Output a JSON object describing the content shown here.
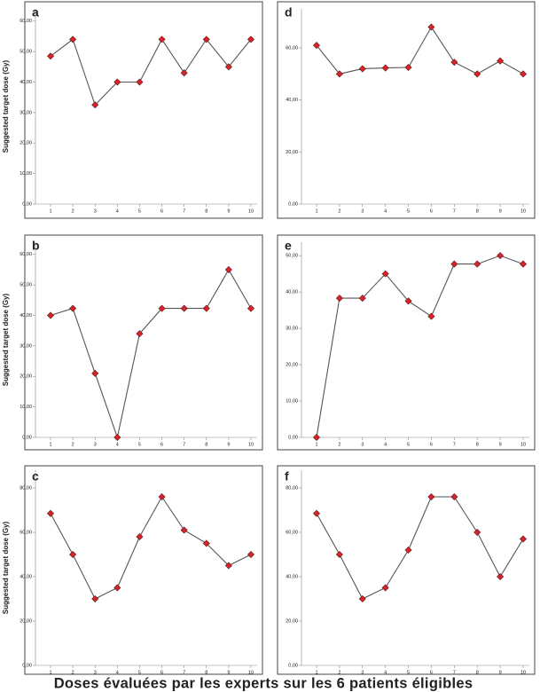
{
  "caption": "Doses évaluées par les experts sur les 6 patients éligibles",
  "chart_data": [
    {
      "type": "line",
      "panel_label": "a",
      "y_label": "Suggested target dose (Gy)",
      "categories": [
        "1",
        "2",
        "3",
        "4",
        "5",
        "6",
        "7",
        "8",
        "9",
        "10"
      ],
      "values": [
        48.5,
        54,
        32.5,
        40,
        40,
        54,
        43,
        54,
        45,
        54
      ],
      "color": "#d8232b",
      "line_color": "#555555",
      "ylim": [
        0,
        64
      ],
      "yticks": [
        {
          "value": 0,
          "label": "0,00"
        },
        {
          "value": 10,
          "label": "10,00"
        },
        {
          "value": 20,
          "label": "20,00"
        },
        {
          "value": 30,
          "label": "30,00"
        },
        {
          "value": 40,
          "label": "40,00"
        },
        {
          "value": 50,
          "label": "50,00"
        },
        {
          "value": 60,
          "label": "60,00"
        }
      ]
    },
    {
      "type": "line",
      "panel_label": "d",
      "categories": [
        "1",
        "2",
        "3",
        "4",
        "5",
        "6",
        "7",
        "8",
        "9",
        "10"
      ],
      "values": [
        61,
        50,
        52,
        52.3,
        52.5,
        68,
        54.5,
        50,
        55,
        50
      ],
      "color": "#d8232b",
      "line_color": "#555555",
      "ylim": [
        0,
        75
      ],
      "yticks": [
        {
          "value": 0,
          "label": "0,00"
        },
        {
          "value": 20,
          "label": "20,00"
        },
        {
          "value": 40,
          "label": "40,00"
        },
        {
          "value": 60,
          "label": "60,00"
        }
      ]
    },
    {
      "type": "line",
      "panel_label": "b",
      "y_label": "Suggested target dose (Gy)",
      "categories": [
        "1",
        "2",
        "3",
        "4",
        "5",
        "6",
        "7",
        "8",
        "9",
        "10"
      ],
      "values": [
        40,
        42.3,
        21,
        0,
        34,
        42.3,
        42.3,
        42.3,
        55,
        42.3
      ],
      "color": "#d8232b",
      "line_color": "#555555",
      "ylim": [
        0,
        64
      ],
      "yticks": [
        {
          "value": 0,
          "label": "0,00"
        },
        {
          "value": 10,
          "label": "10,00"
        },
        {
          "value": 20,
          "label": "20,00"
        },
        {
          "value": 30,
          "label": "30,00"
        },
        {
          "value": 40,
          "label": "40,00"
        },
        {
          "value": 50,
          "label": "50,00"
        },
        {
          "value": 60,
          "label": "60,00"
        }
      ]
    },
    {
      "type": "line",
      "panel_label": "e",
      "categories": [
        "1",
        "2",
        "3",
        "4",
        "5",
        "6",
        "7",
        "8",
        "9",
        "10"
      ],
      "values": [
        0,
        38.3,
        38.3,
        45,
        37.5,
        33.3,
        47.7,
        47.7,
        50,
        47.7
      ],
      "color": "#d8232b",
      "line_color": "#555555",
      "ylim": [
        0,
        53.7
      ],
      "yticks": [
        {
          "value": 0,
          "label": "0,00"
        },
        {
          "value": 10,
          "label": "10,00"
        },
        {
          "value": 20,
          "label": "20,00"
        },
        {
          "value": 30,
          "label": "30,00"
        },
        {
          "value": 40,
          "label": "40,00"
        },
        {
          "value": 50,
          "label": "50,00"
        }
      ]
    },
    {
      "type": "line",
      "panel_label": "c",
      "y_label": "Suggested target dose (Gy)",
      "categories": [
        "1",
        "2",
        "3",
        "4",
        "5",
        "6",
        "7",
        "8",
        "9",
        "10"
      ],
      "values": [
        68.5,
        50,
        30,
        35,
        58,
        76,
        61,
        55,
        45,
        50
      ],
      "color": "#d8232b",
      "line_color": "#555555",
      "ylim": [
        0,
        88
      ],
      "yticks": [
        {
          "value": 0,
          "label": "0,00"
        },
        {
          "value": 20,
          "label": "20,00"
        },
        {
          "value": 40,
          "label": "40,00"
        },
        {
          "value": 60,
          "label": "60,00"
        },
        {
          "value": 80,
          "label": "80,00"
        }
      ]
    },
    {
      "type": "line",
      "panel_label": "f",
      "categories": [
        "1",
        "2",
        "3",
        "4",
        "5",
        "6",
        "7",
        "8",
        "9",
        "10"
      ],
      "values": [
        68.5,
        50,
        30,
        35,
        52,
        76,
        76,
        60,
        40,
        57
      ],
      "color": "#d8232b",
      "line_color": "#555555",
      "ylim": [
        0,
        88
      ],
      "yticks": [
        {
          "value": 0,
          "label": "0,00"
        },
        {
          "value": 20,
          "label": "20,00"
        },
        {
          "value": 40,
          "label": "40,00"
        },
        {
          "value": 60,
          "label": "60,00"
        },
        {
          "value": 80,
          "label": "80,00"
        }
      ]
    }
  ]
}
